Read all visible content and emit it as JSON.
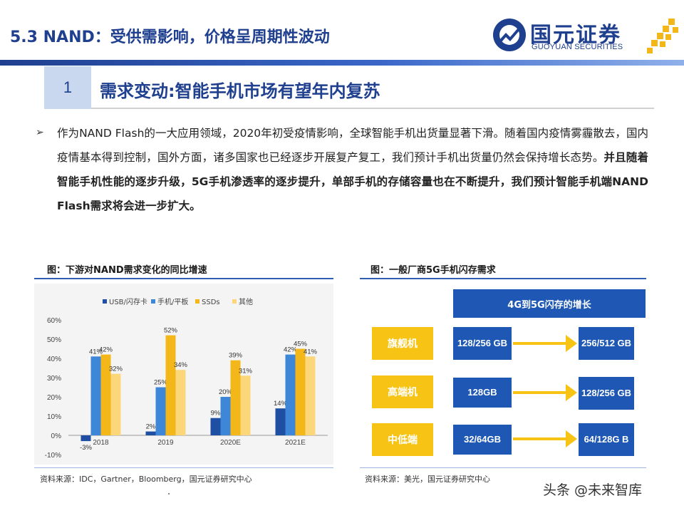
{
  "header": {
    "title": "5.3 NAND：受供需影响，价格呈周期性波动",
    "logo_name": "国元证券",
    "logo_en": "GUOYUAN SECURITIES"
  },
  "section": {
    "number": "1",
    "heading": "需求变动:智能手机市场有望年内复苏"
  },
  "body": {
    "bullet": "➢",
    "normal": "作为NAND Flash的一大应用领域，2020年初受疫情影响，全球智能手机出货量显著下滑。随着国内疫情雾霾散去，国内疫情基本得到控制，国外方面，诸多国家也已经逐步开展复产复工，我们预计手机出货量仍然会保持增长态势。",
    "bold": "并且随着智能手机性能的逐步升级，5G手机渗透率的逐步提升，单部手机的存储容量也在不断提升，我们预计智能手机端NAND Flash需求将会进一步扩大。"
  },
  "left_figure": {
    "caption": "图：下游对NAND需求变化的同比增速",
    "source": "资料来源：IDC，Gartner，Bloomberg，国元证券研究中心"
  },
  "right_figure": {
    "caption": "图：一般厂商5G手机闪存需求",
    "source": "资料来源：美光，国元证券研究中心",
    "header": "4G到5G闪存的增长",
    "rows": [
      {
        "tier": "旗舰机",
        "from": "128/256 GB",
        "to": "256/512 GB"
      },
      {
        "tier": "高端机",
        "from": "128GB",
        "to": "128/256 GB"
      },
      {
        "tier": "中低端",
        "from": "32/64GB",
        "to": "64/128G B"
      }
    ]
  },
  "chart_data": {
    "type": "bar",
    "categories": [
      "2018",
      "2019",
      "2020E",
      "2021E"
    ],
    "series": [
      {
        "name": "USB/闪存卡",
        "color": "#1e4fa3",
        "values": [
          -3,
          2,
          9,
          14
        ]
      },
      {
        "name": "手机/平板",
        "color": "#3d86d8",
        "values": [
          41,
          25,
          20,
          42
        ]
      },
      {
        "name": "SSDs",
        "color": "#f3b71a",
        "values": [
          42,
          52,
          39,
          45
        ]
      },
      {
        "name": "其他",
        "color": "#fbd77a",
        "values": [
          32,
          34,
          31,
          41
        ]
      }
    ],
    "yticks": [
      "60%",
      "50%",
      "40%",
      "30%",
      "20%",
      "10%",
      "0%",
      "-10%"
    ],
    "ylim": [
      -10,
      60
    ],
    "legend": "top",
    "grid": false
  },
  "watermark": "头条 @未来智库"
}
